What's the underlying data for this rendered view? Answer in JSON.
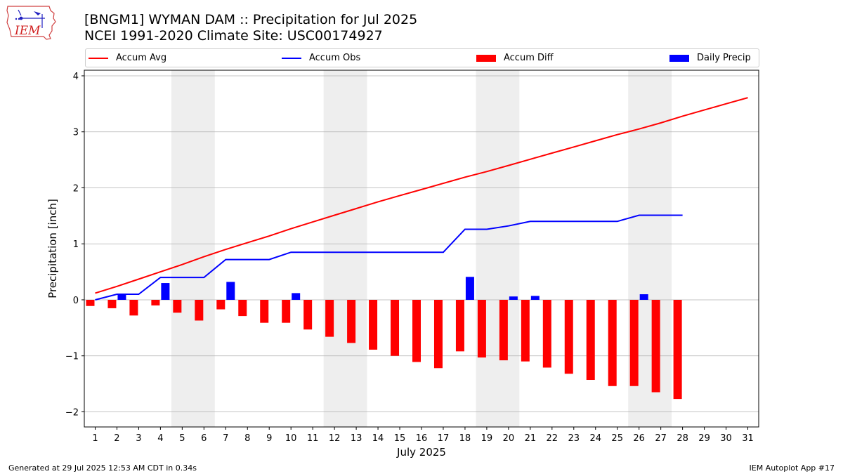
{
  "title_line1": "[BNGM1] WYMAN DAM :: Precipitation for Jul 2025",
  "title_line2": "NCEI 1991-2020 Climate Site: USC00174927",
  "logo_text": "IEM",
  "footer_left": "Generated at 29 Jul 2025 12:53 AM CDT in 0.34s",
  "footer_right": "IEM Autoplot App #17",
  "legend": [
    {
      "label": "Accum Avg",
      "kind": "line",
      "color": "#ff0000"
    },
    {
      "label": "Accum Obs",
      "kind": "line",
      "color": "#0000ff"
    },
    {
      "label": "Accum Diff",
      "kind": "bar",
      "color": "#ff0000"
    },
    {
      "label": "Daily Precip",
      "kind": "bar",
      "color": "#0000ff"
    }
  ],
  "colors": {
    "avg": "#ff0000",
    "obs": "#0000ff",
    "weekend": "#eeeeee",
    "grid": "#b0b0b0"
  },
  "chart_data": {
    "type": "bar",
    "xlabel": "July 2025",
    "ylabel": "Precipitation [inch]",
    "xlim": [
      0.5,
      31.5
    ],
    "ylim": [
      -2.27,
      4.1
    ],
    "yticks": [
      -2,
      -1,
      0,
      1,
      2,
      3,
      4
    ],
    "ytick_labels": [
      "−2",
      "−1",
      "0",
      "1",
      "2",
      "3",
      "4"
    ],
    "xticks": [
      1,
      2,
      3,
      4,
      5,
      6,
      7,
      8,
      9,
      10,
      11,
      12,
      13,
      14,
      15,
      16,
      17,
      18,
      19,
      20,
      21,
      22,
      23,
      24,
      25,
      26,
      27,
      28,
      29,
      30,
      31
    ],
    "grid": "horizontal",
    "legend_position": "top",
    "weekend_bands": [
      [
        4.5,
        6.5
      ],
      [
        11.5,
        13.5
      ],
      [
        18.5,
        20.5
      ],
      [
        25.5,
        27.5
      ]
    ],
    "series": [
      {
        "name": "Accum Avg",
        "type": "line",
        "x": [
          1,
          2,
          3,
          4,
          5,
          6,
          7,
          8,
          9,
          10,
          11,
          12,
          13,
          14,
          15,
          16,
          17,
          18,
          19,
          20,
          21,
          22,
          23,
          24,
          25,
          26,
          27,
          28,
          29,
          30,
          31
        ],
        "values": [
          0.12,
          0.24,
          0.37,
          0.5,
          0.63,
          0.77,
          0.9,
          1.02,
          1.14,
          1.27,
          1.39,
          1.51,
          1.63,
          1.75,
          1.86,
          1.97,
          2.08,
          2.19,
          2.29,
          2.4,
          2.51,
          2.62,
          2.73,
          2.84,
          2.95,
          3.05,
          3.16,
          3.28,
          3.39,
          3.5,
          3.61
        ]
      },
      {
        "name": "Accum Obs",
        "type": "line",
        "x": [
          1,
          2,
          3,
          4,
          5,
          6,
          7,
          8,
          9,
          10,
          11,
          12,
          13,
          14,
          15,
          16,
          17,
          18,
          19,
          20,
          21,
          22,
          23,
          24,
          25,
          26,
          27,
          28
        ],
        "values": [
          0.0,
          0.1,
          0.1,
          0.4,
          0.4,
          0.4,
          0.72,
          0.72,
          0.72,
          0.85,
          0.85,
          0.85,
          0.85,
          0.85,
          0.85,
          0.85,
          0.85,
          1.26,
          1.26,
          1.32,
          1.4,
          1.4,
          1.4,
          1.4,
          1.4,
          1.51,
          1.51,
          1.51
        ]
      },
      {
        "name": "Accum Diff",
        "type": "bar",
        "x": [
          1,
          2,
          3,
          4,
          5,
          6,
          7,
          8,
          9,
          10,
          11,
          12,
          13,
          14,
          15,
          16,
          17,
          18,
          19,
          20,
          21,
          22,
          23,
          24,
          25,
          26,
          27,
          28
        ],
        "values": [
          -0.11,
          -0.15,
          -0.28,
          -0.1,
          -0.23,
          -0.37,
          -0.17,
          -0.29,
          -0.41,
          -0.41,
          -0.53,
          -0.66,
          -0.77,
          -0.89,
          -1.0,
          -1.11,
          -1.22,
          -0.92,
          -1.03,
          -1.08,
          -1.1,
          -1.21,
          -1.32,
          -1.43,
          -1.54,
          -1.54,
          -1.65,
          -1.77
        ]
      },
      {
        "name": "Daily Precip",
        "type": "bar",
        "x": [
          1,
          2,
          3,
          4,
          5,
          6,
          7,
          8,
          9,
          10,
          11,
          12,
          13,
          14,
          15,
          16,
          17,
          18,
          19,
          20,
          21,
          22,
          23,
          24,
          25,
          26,
          27,
          28
        ],
        "values": [
          0.0,
          0.1,
          0.0,
          0.3,
          0.0,
          0.0,
          0.32,
          0.0,
          0.0,
          0.12,
          0.0,
          0.0,
          0.0,
          0.0,
          0.0,
          0.0,
          0.0,
          0.41,
          0.0,
          0.06,
          0.07,
          0.0,
          0.0,
          0.0,
          0.0,
          0.1,
          0.0,
          0.0
        ]
      }
    ]
  }
}
